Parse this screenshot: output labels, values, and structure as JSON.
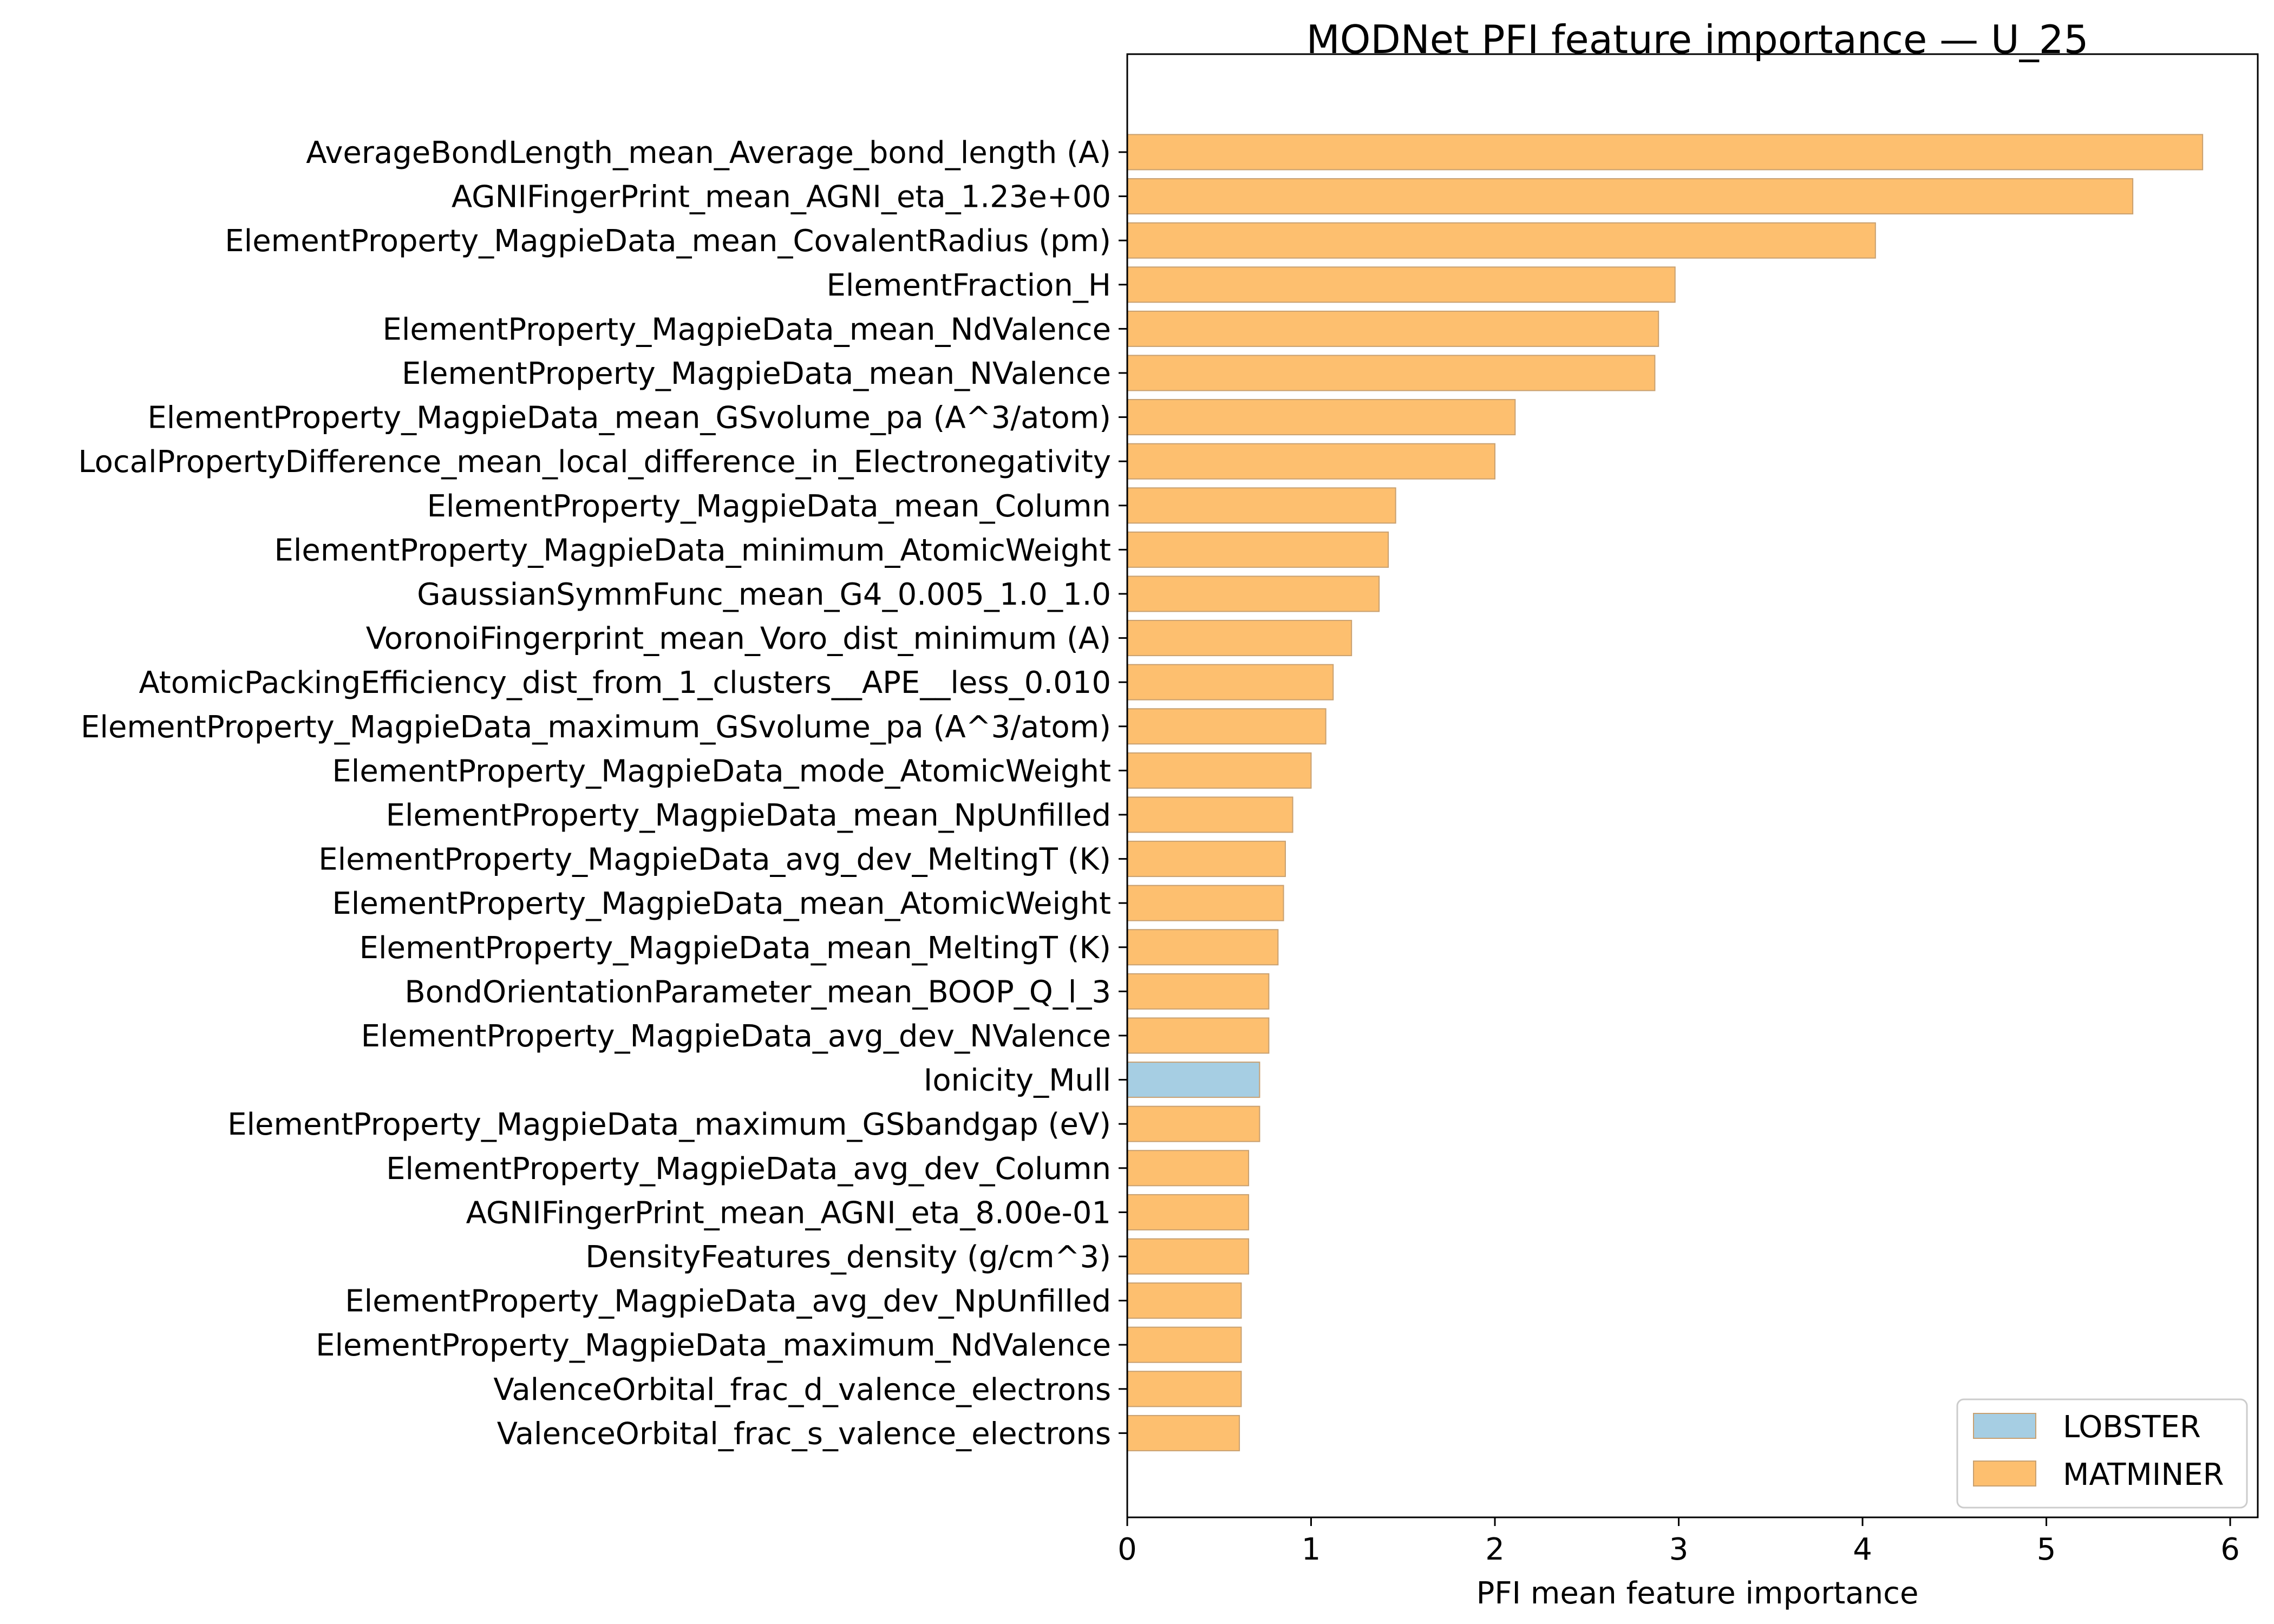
{
  "chart_data": {
    "type": "bar",
    "orientation": "horizontal",
    "title": "MODNet PFI feature importance — U_25",
    "xlabel": "PFI mean feature importance",
    "ylabel": "",
    "xlim": [
      0,
      6.15
    ],
    "xticks": [
      0,
      1,
      2,
      3,
      4,
      5,
      6
    ],
    "xtick_labels": [
      "0",
      "1",
      "2",
      "3",
      "4",
      "5",
      "6"
    ],
    "grid": false,
    "colors": {
      "LOBSTER": "#a6cee3",
      "MATMINER": "#fdbf6f",
      "edge": "#c8a070"
    },
    "legend": {
      "position": "lower-right",
      "entries": [
        {
          "label": "LOBSTER",
          "color": "#a6cee3"
        },
        {
          "label": "MATMINER",
          "color": "#fdbf6f"
        }
      ]
    },
    "bars": [
      {
        "label": "AverageBondLength_mean_Average_bond_length (A)",
        "value": 5.85,
        "source": "MATMINER"
      },
      {
        "label": "AGNIFingerPrint_mean_AGNI_eta_1.23e+00",
        "value": 5.47,
        "source": "MATMINER"
      },
      {
        "label": "ElementProperty_MagpieData_mean_CovalentRadius (pm)",
        "value": 4.07,
        "source": "MATMINER"
      },
      {
        "label": "ElementFraction_H",
        "value": 2.98,
        "source": "MATMINER"
      },
      {
        "label": "ElementProperty_MagpieData_mean_NdValence",
        "value": 2.89,
        "source": "MATMINER"
      },
      {
        "label": "ElementProperty_MagpieData_mean_NValence",
        "value": 2.87,
        "source": "MATMINER"
      },
      {
        "label": "ElementProperty_MagpieData_mean_GSvolume_pa (A^3/atom)",
        "value": 2.11,
        "source": "MATMINER"
      },
      {
        "label": "LocalPropertyDifference_mean_local_difference_in_Electronegativity",
        "value": 2.0,
        "source": "MATMINER"
      },
      {
        "label": "ElementProperty_MagpieData_mean_Column",
        "value": 1.46,
        "source": "MATMINER"
      },
      {
        "label": "ElementProperty_MagpieData_minimum_AtomicWeight",
        "value": 1.42,
        "source": "MATMINER"
      },
      {
        "label": "GaussianSymmFunc_mean_G4_0.005_1.0_1.0",
        "value": 1.37,
        "source": "MATMINER"
      },
      {
        "label": "VoronoiFingerprint_mean_Voro_dist_minimum (A)",
        "value": 1.22,
        "source": "MATMINER"
      },
      {
        "label": "AtomicPackingEfficiency_dist_from_1_clusters__APE__less_0.010",
        "value": 1.12,
        "source": "MATMINER"
      },
      {
        "label": "ElementProperty_MagpieData_maximum_GSvolume_pa (A^3/atom)",
        "value": 1.08,
        "source": "MATMINER"
      },
      {
        "label": "ElementProperty_MagpieData_mode_AtomicWeight",
        "value": 1.0,
        "source": "MATMINER"
      },
      {
        "label": "ElementProperty_MagpieData_mean_NpUnfilled",
        "value": 0.9,
        "source": "MATMINER"
      },
      {
        "label": "ElementProperty_MagpieData_avg_dev_MeltingT (K)",
        "value": 0.86,
        "source": "MATMINER"
      },
      {
        "label": "ElementProperty_MagpieData_mean_AtomicWeight",
        "value": 0.85,
        "source": "MATMINER"
      },
      {
        "label": "ElementProperty_MagpieData_mean_MeltingT (K)",
        "value": 0.82,
        "source": "MATMINER"
      },
      {
        "label": "BondOrientationParameter_mean_BOOP_Q_l_3",
        "value": 0.77,
        "source": "MATMINER"
      },
      {
        "label": "ElementProperty_MagpieData_avg_dev_NValence",
        "value": 0.77,
        "source": "MATMINER"
      },
      {
        "label": "Ionicity_Mull",
        "value": 0.72,
        "source": "LOBSTER"
      },
      {
        "label": "ElementProperty_MagpieData_maximum_GSbandgap (eV)",
        "value": 0.72,
        "source": "MATMINER"
      },
      {
        "label": "ElementProperty_MagpieData_avg_dev_Column",
        "value": 0.66,
        "source": "MATMINER"
      },
      {
        "label": "AGNIFingerPrint_mean_AGNI_eta_8.00e-01",
        "value": 0.66,
        "source": "MATMINER"
      },
      {
        "label": "DensityFeatures_density (g/cm^3)",
        "value": 0.66,
        "source": "MATMINER"
      },
      {
        "label": "ElementProperty_MagpieData_avg_dev_NpUnfilled",
        "value": 0.62,
        "source": "MATMINER"
      },
      {
        "label": "ElementProperty_MagpieData_maximum_NdValence",
        "value": 0.62,
        "source": "MATMINER"
      },
      {
        "label": "ValenceOrbital_frac_d_valence_electrons",
        "value": 0.62,
        "source": "MATMINER"
      },
      {
        "label": "ValenceOrbital_frac_s_valence_electrons",
        "value": 0.61,
        "source": "MATMINER"
      }
    ]
  }
}
